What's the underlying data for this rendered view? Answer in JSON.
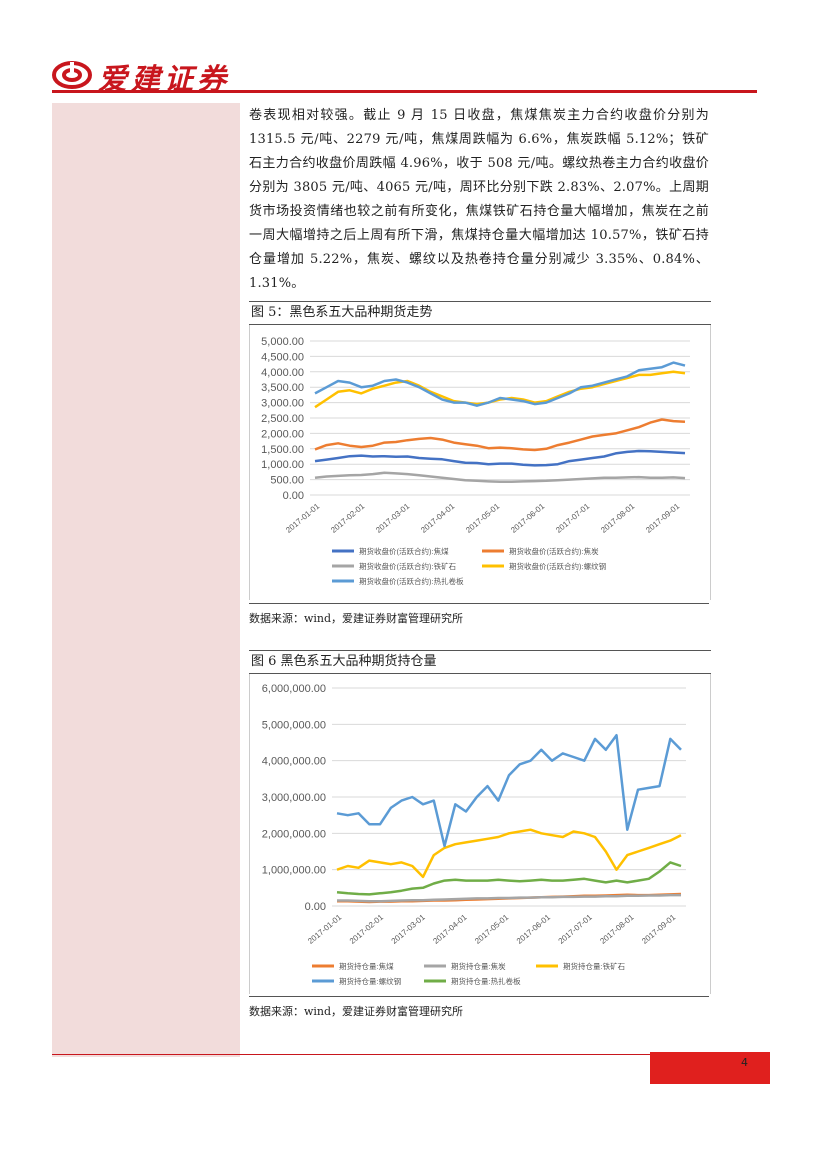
{
  "header": {
    "company": "爱建证券"
  },
  "body_text": "卷表现相对较强。截止 9 月 15 日收盘，焦煤焦炭主力合约收盘价分别为 1315.5 元/吨、2279 元/吨，焦煤周跌幅为 6.6%，焦炭跌幅 5.12%；铁矿石主力合约收盘价周跌幅 4.96%，收于 508 元/吨。螺纹热卷主力合约收盘价分别为 3805 元/吨、4065 元/吨，周环比分别下跌 2.83%、2.07%。上周期货市场投资情绪也较之前有所变化，焦煤铁矿石持仓量大幅增加，焦炭在之前一周大幅增持之后上周有所下滑，焦煤持仓量大幅增加达 10.57%，铁矿石持仓量增加 5.22%，焦炭、螺纹以及热卷持仓量分别减少 3.35%、0.84%、1.31%。",
  "figures": [
    {
      "title": "图 5：黑色系五大品种期货走势",
      "source": "数据来源：wind，爱建证券财富管理研究所"
    },
    {
      "title": "图 6  黑色系五大品种期货持仓量",
      "source": "数据来源：wind，爱建证券财富管理研究所"
    }
  ],
  "page_number": "4",
  "chart_data": [
    {
      "type": "line",
      "title": "",
      "y_ticks": [
        "5,000.00",
        "4,500.00",
        "4,000.00",
        "3,500.00",
        "3,000.00",
        "2,500.00",
        "2,000.00",
        "1,500.00",
        "1,000.00",
        "500.00",
        "0.00"
      ],
      "ylim": [
        0,
        5000
      ],
      "x_ticks": [
        "2017-01-01",
        "2017-02-01",
        "2017-03-01",
        "2017-04-01",
        "2017-05-01",
        "2017-06-01",
        "2017-07-01",
        "2017-08-01",
        "2017-09-01"
      ],
      "grid": true,
      "legend_position": "bottom",
      "series": [
        {
          "name": "期货收盘价(活跃合约):焦煤",
          "color": "#4472c4",
          "values": [
            1100,
            1150,
            1200,
            1260,
            1280,
            1250,
            1260,
            1240,
            1250,
            1200,
            1180,
            1160,
            1100,
            1050,
            1040,
            1000,
            1020,
            1020,
            980,
            960,
            970,
            1000,
            1100,
            1150,
            1200,
            1250,
            1350,
            1400,
            1430,
            1420,
            1400,
            1380,
            1360
          ]
        },
        {
          "name": "期货收盘价(活跃合约):焦炭",
          "color": "#ed7d31",
          "values": [
            1480,
            1620,
            1680,
            1600,
            1560,
            1600,
            1700,
            1720,
            1780,
            1820,
            1850,
            1800,
            1700,
            1650,
            1600,
            1520,
            1540,
            1520,
            1480,
            1460,
            1500,
            1620,
            1700,
            1800,
            1900,
            1950,
            2000,
            2100,
            2200,
            2350,
            2450,
            2400,
            2380
          ]
        },
        {
          "name": "期货收盘价(活跃合约):铁矿石",
          "color": "#a5a5a5",
          "values": [
            560,
            600,
            620,
            640,
            650,
            680,
            720,
            700,
            680,
            640,
            600,
            560,
            520,
            480,
            460,
            440,
            430,
            430,
            440,
            450,
            460,
            480,
            500,
            520,
            540,
            560,
            560,
            570,
            580,
            560,
            560,
            570,
            550
          ]
        },
        {
          "name": "期货收盘价(活跃合约):螺纹钢",
          "color": "#ffc000",
          "values": [
            2850,
            3100,
            3350,
            3400,
            3300,
            3450,
            3550,
            3650,
            3700,
            3550,
            3350,
            3200,
            3050,
            3000,
            2950,
            3000,
            3100,
            3150,
            3100,
            3000,
            3050,
            3200,
            3350,
            3450,
            3500,
            3600,
            3700,
            3800,
            3900,
            3900,
            3950,
            4000,
            3950
          ]
        },
        {
          "name": "期货收盘价(活跃合约):热扎卷板",
          "color": "#5b9bd5",
          "values": [
            3300,
            3500,
            3700,
            3650,
            3500,
            3550,
            3700,
            3750,
            3650,
            3500,
            3300,
            3100,
            3000,
            3000,
            2900,
            3000,
            3150,
            3100,
            3050,
            2950,
            3000,
            3150,
            3300,
            3500,
            3550,
            3650,
            3750,
            3850,
            4050,
            4100,
            4150,
            4300,
            4200
          ]
        }
      ]
    },
    {
      "type": "line",
      "title": "",
      "y_ticks": [
        "6,000,000.00",
        "5,000,000.00",
        "4,000,000.00",
        "3,000,000.00",
        "2,000,000.00",
        "1,000,000.00",
        "0.00"
      ],
      "ylim": [
        0,
        6000000
      ],
      "x_ticks": [
        "2017-01-01",
        "2017-02-01",
        "2017-03-01",
        "2017-04-01",
        "2017-05-01",
        "2017-06-01",
        "2017-07-01",
        "2017-08-01",
        "2017-09-01"
      ],
      "grid": true,
      "legend_position": "bottom",
      "series": [
        {
          "name": "期货持仓量:焦煤",
          "color": "#ed7d31",
          "values": [
            130000,
            130000,
            120000,
            110000,
            120000,
            120000,
            130000,
            130000,
            140000,
            150000,
            150000,
            160000,
            170000,
            180000,
            190000,
            200000,
            210000,
            220000,
            230000,
            240000,
            250000,
            260000,
            270000,
            280000,
            280000,
            290000,
            300000,
            310000,
            300000,
            300000,
            310000,
            320000,
            330000
          ]
        },
        {
          "name": "期货持仓量:焦炭",
          "color": "#a5a5a5",
          "values": [
            150000,
            150000,
            140000,
            130000,
            130000,
            140000,
            150000,
            160000,
            160000,
            170000,
            180000,
            190000,
            200000,
            210000,
            210000,
            220000,
            220000,
            230000,
            230000,
            240000,
            240000,
            250000,
            250000,
            260000,
            260000,
            270000,
            270000,
            280000,
            280000,
            290000,
            290000,
            300000,
            300000
          ]
        },
        {
          "name": "期货持仓量:铁矿石",
          "color": "#ffc000",
          "values": [
            1000000,
            1100000,
            1050000,
            1250000,
            1200000,
            1150000,
            1200000,
            1100000,
            800000,
            1400000,
            1600000,
            1700000,
            1750000,
            1800000,
            1850000,
            1900000,
            2000000,
            2050000,
            2100000,
            2000000,
            1950000,
            1900000,
            2050000,
            2000000,
            1900000,
            1500000,
            1000000,
            1400000,
            1500000,
            1600000,
            1700000,
            1800000,
            1950000
          ]
        },
        {
          "name": "期货持仓量:螺纹钢",
          "color": "#5b9bd5",
          "values": [
            2550000,
            2500000,
            2550000,
            2250000,
            2250000,
            2700000,
            2900000,
            3000000,
            2800000,
            2900000,
            1650000,
            2800000,
            2600000,
            3000000,
            3300000,
            2900000,
            3600000,
            3900000,
            4000000,
            4300000,
            4000000,
            4200000,
            4100000,
            4000000,
            4600000,
            4300000,
            4700000,
            2100000,
            3200000,
            3250000,
            3300000,
            4600000,
            4300000
          ]
        },
        {
          "name": "期货持仓量:热扎卷板",
          "color": "#70ad47",
          "values": [
            380000,
            350000,
            330000,
            320000,
            350000,
            380000,
            420000,
            480000,
            500000,
            620000,
            700000,
            720000,
            700000,
            700000,
            700000,
            720000,
            700000,
            680000,
            700000,
            720000,
            700000,
            700000,
            720000,
            750000,
            700000,
            650000,
            700000,
            650000,
            700000,
            750000,
            950000,
            1200000,
            1100000
          ]
        }
      ]
    }
  ]
}
